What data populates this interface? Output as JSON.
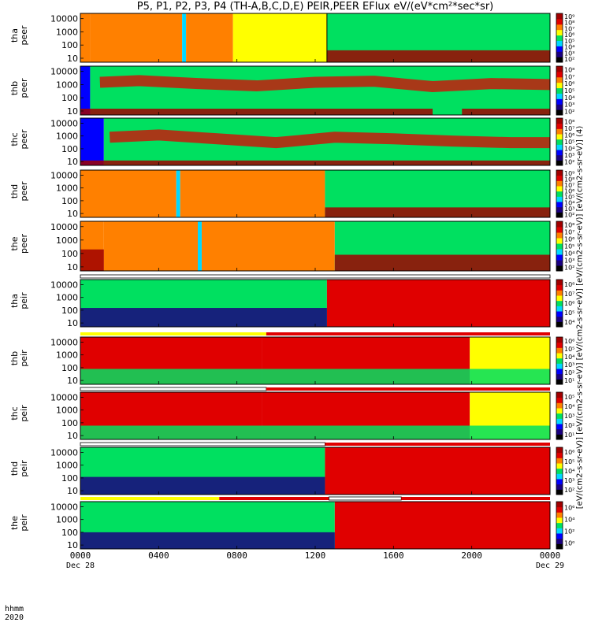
{
  "title": "P5, P1, P2, P3, P4 (TH-A,B,C,D,E) PEIR,PEER EFlux eV/(eV*cm²*sec*sr)",
  "units_label": "[eV/(cm2-s-sr-eV)] [eV/(cm2-s-sr-eV)] [eV/(cm2-s-sr-eV)] [eV/(cm2-s-sr-eV)] [eV/(cm2-s-sr-eV)] (4)",
  "footer": {
    "line1": "hhmm",
    "line2": "2020"
  },
  "colors": {
    "spectrogram_scale": [
      "#000000",
      "#1a0080",
      "#0000ff",
      "#00d8ff",
      "#00e060",
      "#ffff00",
      "#ff8000",
      "#e00000",
      "#a00000"
    ]
  },
  "chart_data": {
    "type": "heatmap",
    "x_ticks": [
      {
        "value": 0,
        "label": "0000",
        "date": "Dec 28"
      },
      {
        "value": 4,
        "label": "0400",
        "date": ""
      },
      {
        "value": 8,
        "label": "0800",
        "date": ""
      },
      {
        "value": 12,
        "label": "1200",
        "date": ""
      },
      {
        "value": 16,
        "label": "1600",
        "date": ""
      },
      {
        "value": 20,
        "label": "2000",
        "date": ""
      },
      {
        "value": 24,
        "label": "0000",
        "date": "Dec 29"
      }
    ],
    "xlim": [
      0,
      24
    ],
    "y_scale": "log",
    "ylim": [
      5,
      25000
    ],
    "y_ticks": [
      10,
      100,
      1000,
      10000
    ],
    "y_tick_labels": [
      "10",
      "100",
      "1000",
      "10000"
    ],
    "panels": [
      {
        "probe": "tha",
        "instrument": "peer",
        "cbar_labels": [
          "10²",
          "10³",
          "10⁴",
          "10⁵",
          "10⁶",
          "10⁷",
          "10⁸",
          "10⁹"
        ],
        "upper_bound": [
          {
            "x": 0,
            "y": 15000
          },
          {
            "x": 24,
            "y": 15000
          }
        ],
        "segments": [
          {
            "x0": 0,
            "x1": 0.5,
            "level": 6
          },
          {
            "x0": 0.5,
            "x1": 5.2,
            "level": 5.5
          },
          {
            "x0": 5.2,
            "x1": 5.4,
            "level": 3
          },
          {
            "x0": 5.4,
            "x1": 7.8,
            "level": 5.5
          },
          {
            "x0": 7.8,
            "x1": 12.6,
            "level": 5
          },
          {
            "x0": 12.6,
            "x1": 24,
            "level": 3.5
          }
        ],
        "bands": [
          {
            "x0": 12.6,
            "x1": 24,
            "low": 5,
            "high": 40,
            "level": 8
          }
        ],
        "features": [
          {
            "x": 12.6,
            "label": "boundary"
          }
        ]
      },
      {
        "probe": "thb",
        "instrument": "peer",
        "cbar_labels": [
          "10²",
          "10³",
          "10⁴",
          "10⁵",
          "10⁶",
          "10⁷",
          "10⁸"
        ],
        "segments": [
          {
            "x0": 0,
            "x1": 0.5,
            "level": 2
          },
          {
            "x0": 0.5,
            "x1": 24,
            "level": 4
          }
        ],
        "peak_band": [
          {
            "x": 1,
            "y": 1500
          },
          {
            "x": 3,
            "y": 2000
          },
          {
            "x": 6,
            "y": 1200
          },
          {
            "x": 9,
            "y": 800
          },
          {
            "x": 12,
            "y": 1500
          },
          {
            "x": 15,
            "y": 1800
          },
          {
            "x": 18,
            "y": 700
          },
          {
            "x": 21,
            "y": 1200
          },
          {
            "x": 24,
            "y": 1000
          }
        ],
        "bands": [
          {
            "x0": 0,
            "x1": 18,
            "low": 5,
            "high": 15,
            "level": 8
          },
          {
            "x0": 19.5,
            "x1": 24,
            "low": 5,
            "high": 15,
            "level": 8
          }
        ]
      },
      {
        "probe": "thc",
        "instrument": "peer",
        "cbar_labels": [
          "10²",
          "10³",
          "10⁴",
          "10⁵",
          "10⁶",
          "10⁷",
          "10⁸"
        ],
        "segments": [
          {
            "x0": 0,
            "x1": 1.2,
            "level": 2
          },
          {
            "x0": 1.2,
            "x1": 24,
            "level": 4
          }
        ],
        "peak_band": [
          {
            "x": 1.5,
            "y": 800
          },
          {
            "x": 4,
            "y": 1200
          },
          {
            "x": 7,
            "y": 600
          },
          {
            "x": 10,
            "y": 300
          },
          {
            "x": 13,
            "y": 800
          },
          {
            "x": 16,
            "y": 600
          },
          {
            "x": 19,
            "y": 400
          },
          {
            "x": 22,
            "y": 300
          },
          {
            "x": 24,
            "y": 300
          }
        ],
        "bands": [
          {
            "x0": 0,
            "x1": 24,
            "low": 5,
            "high": 12,
            "level": 8
          }
        ]
      },
      {
        "probe": "thd",
        "instrument": "peer",
        "cbar_labels": [
          "10²",
          "10³",
          "10⁴",
          "10⁵",
          "10⁶",
          "10⁷",
          "10⁸",
          "10⁹"
        ],
        "segments": [
          {
            "x0": 0,
            "x1": 4.9,
            "level": 5.5
          },
          {
            "x0": 4.9,
            "x1": 5.1,
            "level": 3
          },
          {
            "x0": 5.1,
            "x1": 12.5,
            "level": 5.5
          },
          {
            "x0": 12.5,
            "x1": 24,
            "level": 3.5
          }
        ],
        "bands": [
          {
            "x0": 12.5,
            "x1": 24,
            "low": 5,
            "high": 30,
            "level": 8
          }
        ]
      },
      {
        "probe": "the",
        "instrument": "peer",
        "cbar_labels": [
          "10²",
          "10³",
          "10⁴",
          "10⁵",
          "10⁶",
          "10⁷",
          "10⁸"
        ],
        "segments": [
          {
            "x0": 0,
            "x1": 1.2,
            "level": 6
          },
          {
            "x0": 1.2,
            "x1": 6.0,
            "level": 5.5
          },
          {
            "x0": 6.0,
            "x1": 6.2,
            "level": 3
          },
          {
            "x0": 6.2,
            "x1": 13.0,
            "level": 5.5
          },
          {
            "x0": 13.0,
            "x1": 24,
            "level": 3.5
          }
        ],
        "bands": [
          {
            "x0": 0,
            "x1": 1.2,
            "low": 5,
            "high": 200,
            "level": 8
          },
          {
            "x0": 13,
            "x1": 24,
            "low": 5,
            "high": 80,
            "level": 8
          }
        ]
      },
      {
        "probe": "tha",
        "instrument": "peir",
        "cbar_labels": [
          "10⁴",
          "10⁵",
          "10⁶",
          "10⁷",
          "10⁸"
        ],
        "segments": [
          {
            "x0": 0,
            "x1": 12.6,
            "level": 4
          },
          {
            "x0": 12.6,
            "x1": 24,
            "level": 7
          }
        ],
        "bands": [
          {
            "x0": 0,
            "x1": 12.6,
            "low": 5,
            "high": 150,
            "level": 1
          }
        ],
        "bar": [
          {
            "x0": 0,
            "x1": 24,
            "type": "white"
          }
        ]
      },
      {
        "probe": "thb",
        "instrument": "peir",
        "cbar_labels": [
          "10¹",
          "10²",
          "10³",
          "10⁴",
          "10⁵",
          "10⁶"
        ],
        "segments": [
          {
            "x0": 0,
            "x1": 9.3,
            "level": 7
          },
          {
            "x0": 9.3,
            "x1": 19.9,
            "level": 6.5
          },
          {
            "x0": 19.9,
            "x1": 24,
            "level": 4.5
          }
        ],
        "bands": [
          {
            "x0": 0,
            "x1": 24,
            "low": 5,
            "high": 80,
            "level": 4
          }
        ],
        "bar": [
          {
            "x0": 0,
            "x1": 9.5,
            "type": "yellow"
          },
          {
            "x0": 9.5,
            "x1": 24,
            "type": "red"
          }
        ]
      },
      {
        "probe": "thc",
        "instrument": "peir",
        "cbar_labels": [
          "10¹",
          "10²",
          "10³",
          "10⁴",
          "10⁵"
        ],
        "segments": [
          {
            "x0": 0,
            "x1": 9.3,
            "level": 7
          },
          {
            "x0": 9.3,
            "x1": 19.9,
            "level": 6.5
          },
          {
            "x0": 19.9,
            "x1": 24,
            "level": 4.5
          }
        ],
        "bands": [
          {
            "x0": 0,
            "x1": 24,
            "low": 5,
            "high": 60,
            "level": 4
          }
        ],
        "bar": [
          {
            "x0": 0,
            "x1": 9.5,
            "type": "white"
          },
          {
            "x0": 9.5,
            "x1": 24,
            "type": "red"
          }
        ]
      },
      {
        "probe": "thd",
        "instrument": "peir",
        "cbar_labels": [
          "10²",
          "10³",
          "10⁴",
          "10⁵",
          "10⁶"
        ],
        "segments": [
          {
            "x0": 0,
            "x1": 12.5,
            "level": 4
          },
          {
            "x0": 12.5,
            "x1": 24,
            "level": 7
          }
        ],
        "bands": [
          {
            "x0": 0,
            "x1": 12.5,
            "low": 5,
            "high": 120,
            "level": 1
          }
        ],
        "bar": [
          {
            "x0": 0,
            "x1": 12.5,
            "type": "white"
          },
          {
            "x0": 12.5,
            "x1": 24,
            "type": "red"
          }
        ]
      },
      {
        "probe": "the",
        "instrument": "peir",
        "cbar_labels": [
          "10⁰",
          "10²",
          "10⁴",
          "10⁶"
        ],
        "segments": [
          {
            "x0": 0,
            "x1": 13.0,
            "level": 4
          },
          {
            "x0": 13.0,
            "x1": 24,
            "level": 7
          }
        ],
        "bands": [
          {
            "x0": 0,
            "x1": 13.0,
            "low": 5,
            "high": 100,
            "level": 1
          }
        ],
        "bar": [
          {
            "x0": 0,
            "x1": 7.1,
            "type": "yellow"
          },
          {
            "x0": 7.1,
            "x1": 12.7,
            "type": "red"
          },
          {
            "x0": 12.7,
            "x1": 16.4,
            "type": "white"
          },
          {
            "x0": 16.4,
            "x1": 24,
            "type": "red"
          }
        ]
      }
    ]
  }
}
